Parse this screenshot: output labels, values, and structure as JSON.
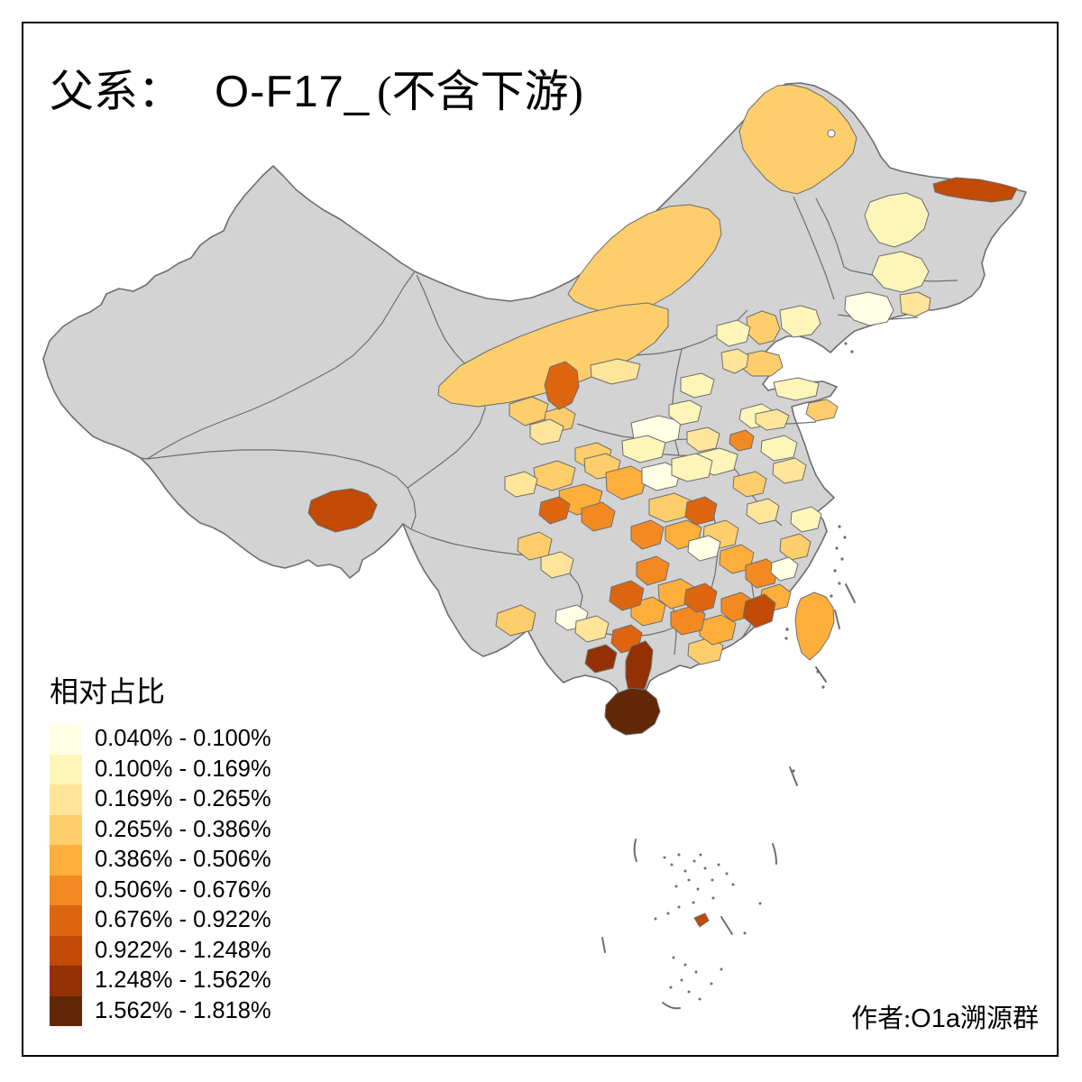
{
  "title": {
    "prefix": "父系：",
    "haplogroup": "O-F17_",
    "suffix": "(不含下游)"
  },
  "legend": {
    "title": "相对占比",
    "bins": [
      {
        "label": "0.040% - 0.100%",
        "color": "#FFFFE5"
      },
      {
        "label": "0.100% - 0.169%",
        "color": "#FEF5B9"
      },
      {
        "label": "0.169% - 0.265%",
        "color": "#FEE59A"
      },
      {
        "label": "0.265% - 0.386%",
        "color": "#FDCE6B"
      },
      {
        "label": "0.386% - 0.506%",
        "color": "#FDAE3B"
      },
      {
        "label": "0.506% - 0.676%",
        "color": "#F28A21"
      },
      {
        "label": "0.676% - 0.922%",
        "color": "#DE6510"
      },
      {
        "label": "0.922% - 1.248%",
        "color": "#C14A04"
      },
      {
        "label": "1.248% - 1.562%",
        "color": "#933105"
      },
      {
        "label": "1.562% - 1.818%",
        "color": "#612706"
      }
    ]
  },
  "map": {
    "base_fill": "#D3D3D3",
    "border_color": "#6E6E6E",
    "sea_fill": "#FFFFFF",
    "frame_color": "#000000"
  },
  "attribution": {
    "prefix": "作者:",
    "latin": "O1a",
    "suffix": "溯源群"
  }
}
